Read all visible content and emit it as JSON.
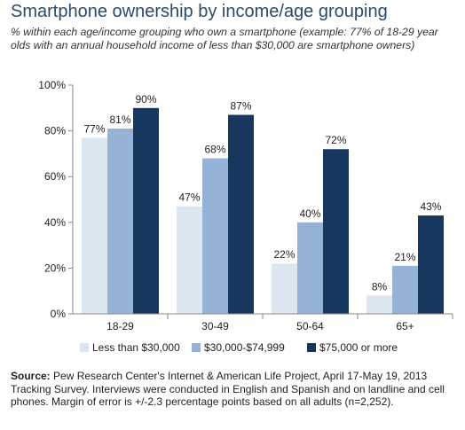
{
  "title": "Smartphone ownership by income/age grouping",
  "subtitle": "% within each age/income grouping who own a smartphone (example: 77% of 18-29 year olds with an annual household income of less than $30,000 are smartphone owners)",
  "source": {
    "label": "Source:",
    "text": " Pew Research Center's Internet & American Life Project, April 17-May 19, 2013 Tracking Survey. Interviews were conducted in English and Spanish and on landline and cell phones.  Margin of error is +/-2.3 percentage points based on all adults (n=2,252)."
  },
  "colors": {
    "series": [
      "#dce6f1",
      "#95b3d7",
      "#17375e"
    ],
    "axis": "#888888"
  },
  "chart_data": {
    "type": "bar",
    "categories": [
      "18-29",
      "30-49",
      "50-64",
      "65+"
    ],
    "series": [
      {
        "name": "Less than $30,000",
        "values": [
          77,
          47,
          22,
          8
        ]
      },
      {
        "name": "$30,000-$74,999",
        "values": [
          81,
          68,
          40,
          21
        ]
      },
      {
        "name": "$75,000 or more",
        "values": [
          90,
          87,
          72,
          43
        ]
      }
    ],
    "value_suffix": "%",
    "ylim": [
      0,
      100
    ],
    "yticks": [
      "0%",
      "20%",
      "40%",
      "60%",
      "80%",
      "100%"
    ],
    "legend_position": "bottom",
    "grid": false
  }
}
